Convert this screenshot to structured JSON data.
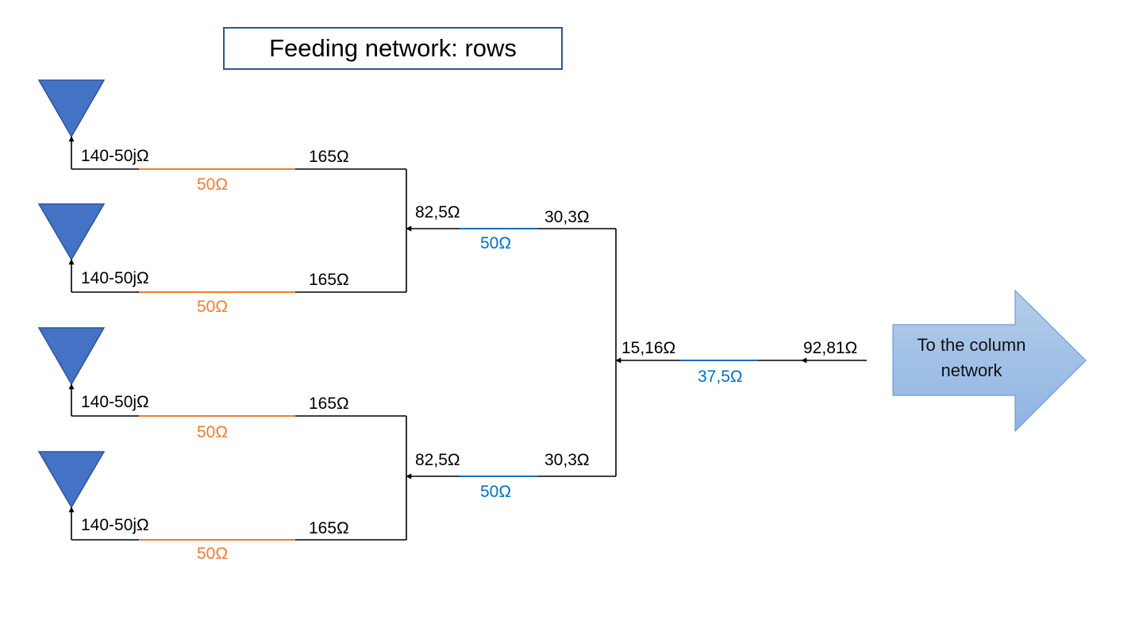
{
  "title": "Feeding network: rows",
  "colors": {
    "antenna": "#4472C4",
    "wire": "#000000",
    "orange_line": "#ED7D31",
    "blue_line": "#0070C0",
    "arrow_fill": "#9DC3E6",
    "title_border": "#2F5597"
  },
  "antenna_rows": [
    {
      "antenna_impedance": "140-50jΩ",
      "line_impedance": "50Ω",
      "input_impedance": "165Ω"
    },
    {
      "antenna_impedance": "140-50jΩ",
      "line_impedance": "50Ω",
      "input_impedance": "165Ω"
    },
    {
      "antenna_impedance": "140-50jΩ",
      "line_impedance": "50Ω",
      "input_impedance": "165Ω"
    },
    {
      "antenna_impedance": "140-50jΩ",
      "line_impedance": "50Ω",
      "input_impedance": "165Ω"
    }
  ],
  "pair_stages": [
    {
      "load_impedance": "82,5Ω",
      "line_impedance": "50Ω",
      "input_impedance": "30,3Ω"
    },
    {
      "load_impedance": "82,5Ω",
      "line_impedance": "50Ω",
      "input_impedance": "30,3Ω"
    }
  ],
  "main_stage": {
    "load_impedance": "15,16Ω",
    "line_impedance": "37,5Ω",
    "input_impedance": "92,81Ω"
  },
  "output_arrow": {
    "label_line1": "To the column",
    "label_line2": "network"
  }
}
